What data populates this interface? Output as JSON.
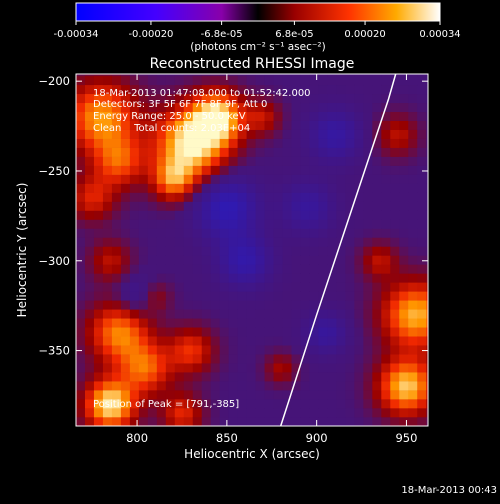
{
  "colorbar": {
    "ticks": [
      "-0.00034",
      "-0.00020",
      "-6.8e-05",
      "6.8e-05",
      "0.00020",
      "0.00034"
    ],
    "tick_values": [
      -0.00034,
      -0.0002,
      -6.8e-05,
      6.8e-05,
      0.0002,
      0.00034
    ],
    "min": -0.00034,
    "max": 0.00034,
    "units_label": "(photons cm⁻² s⁻¹ asec⁻²)"
  },
  "chart_data": {
    "type": "heatmap",
    "title": "Reconstructed RHESSI Image",
    "xlabel": "Heliocentric X (arcsec)",
    "ylabel": "Heliocentric Y (arcsec)",
    "xlim": [
      766,
      962
    ],
    "ylim": [
      -392,
      -196
    ],
    "xticks": [
      800,
      850,
      900,
      950
    ],
    "yticks": [
      -200,
      -250,
      -300,
      -350
    ],
    "annotations": [
      "18-Mar-2013 01:47:08.000 to 01:52:42.000",
      "Detectors: 3F 5F 6F 7F 8F 9F, Att 0",
      "Energy Range: 25.0 - 50.0 keV",
      "Clean    Total counts: 2.03E+04"
    ],
    "peak_label": "Position of Peak = [791,-385]",
    "peak_position": [
      791,
      -385
    ],
    "limb_curve": [
      [
        880,
        -392
      ],
      [
        900,
        -330
      ],
      [
        920,
        -270
      ],
      [
        940,
        -210
      ],
      [
        944,
        -196
      ]
    ],
    "intensity_blobs": [
      {
        "x": 780,
        "y": -220,
        "r": 14,
        "v": 0.00026
      },
      {
        "x": 790,
        "y": -245,
        "r": 10,
        "v": 0.00018
      },
      {
        "x": 830,
        "y": -235,
        "r": 14,
        "v": 0.00034
      },
      {
        "x": 845,
        "y": -220,
        "r": 10,
        "v": 0.0003
      },
      {
        "x": 820,
        "y": -255,
        "r": 8,
        "v": 0.0002
      },
      {
        "x": 870,
        "y": -220,
        "r": 7,
        "v": 0.00012
      },
      {
        "x": 775,
        "y": -265,
        "r": 9,
        "v": 0.00015
      },
      {
        "x": 785,
        "y": -300,
        "r": 8,
        "v": 0.00012
      },
      {
        "x": 790,
        "y": -340,
        "r": 12,
        "v": 0.00024
      },
      {
        "x": 785,
        "y": -380,
        "r": 10,
        "v": 0.00033
      },
      {
        "x": 805,
        "y": -360,
        "r": 10,
        "v": 0.0002
      },
      {
        "x": 830,
        "y": -350,
        "r": 9,
        "v": 0.00017
      },
      {
        "x": 825,
        "y": -385,
        "r": 8,
        "v": 0.00016
      },
      {
        "x": 880,
        "y": -360,
        "r": 6,
        "v": 0.0001
      },
      {
        "x": 955,
        "y": -330,
        "r": 13,
        "v": 0.00028
      },
      {
        "x": 950,
        "y": -370,
        "r": 11,
        "v": 0.0003
      },
      {
        "x": 935,
        "y": -300,
        "r": 7,
        "v": 0.00012
      },
      {
        "x": 945,
        "y": -230,
        "r": 8,
        "v": 0.00012
      },
      {
        "x": 810,
        "y": -320,
        "r": 6,
        "v": 9e-05
      },
      {
        "x": 895,
        "y": -270,
        "r": 10,
        "v": -0.00012
      },
      {
        "x": 850,
        "y": -270,
        "r": 12,
        "v": -0.0002
      },
      {
        "x": 860,
        "y": -300,
        "r": 10,
        "v": -0.00016
      },
      {
        "x": 905,
        "y": -340,
        "r": 8,
        "v": -0.00012
      },
      {
        "x": 910,
        "y": -230,
        "r": 10,
        "v": -0.00014
      },
      {
        "x": 800,
        "y": -320,
        "r": 8,
        "v": -0.0001
      }
    ]
  },
  "footer": {
    "timestamp": "18-Mar-2013 00:43"
  }
}
